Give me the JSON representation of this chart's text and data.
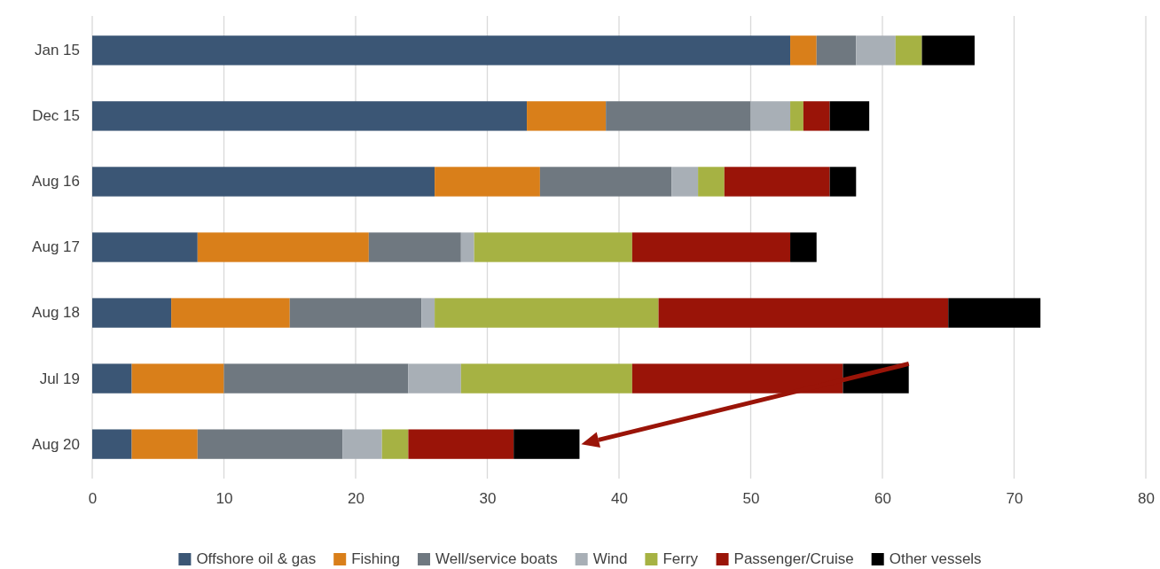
{
  "chart_data": {
    "type": "bar",
    "orientation": "horizontal",
    "stacked": true,
    "categories": [
      "Jan 15",
      "Dec 15",
      "Aug 16",
      "Aug 17",
      "Aug 18",
      "Jul 19",
      "Aug 20"
    ],
    "series": [
      {
        "name": "Offshore oil & gas",
        "color": "#3b5675",
        "values": [
          53,
          33,
          26,
          8,
          6,
          3,
          3
        ]
      },
      {
        "name": "Fishing",
        "color": "#d97f1a",
        "values": [
          2,
          6,
          8,
          13,
          9,
          7,
          5
        ]
      },
      {
        "name": "Well/service boats",
        "color": "#6f7880",
        "values": [
          3,
          11,
          10,
          7,
          10,
          14,
          11
        ]
      },
      {
        "name": "Wind",
        "color": "#a8afb6",
        "values": [
          3,
          3,
          2,
          1,
          1,
          4,
          3
        ]
      },
      {
        "name": "Ferry",
        "color": "#a6b243",
        "values": [
          2,
          1,
          2,
          12,
          17,
          13,
          2
        ]
      },
      {
        "name": "Passenger/Cruise",
        "color": "#9a1408",
        "values": [
          0,
          2,
          8,
          12,
          22,
          16,
          8
        ]
      },
      {
        "name": "Other vessels",
        "color": "#000000",
        "values": [
          4,
          3,
          2,
          2,
          7,
          5,
          5
        ]
      }
    ],
    "xlim": [
      0,
      80
    ],
    "xticks": [
      0,
      10,
      20,
      30,
      40,
      50,
      60,
      70,
      80
    ],
    "grid": "x",
    "legend": "bottom"
  }
}
